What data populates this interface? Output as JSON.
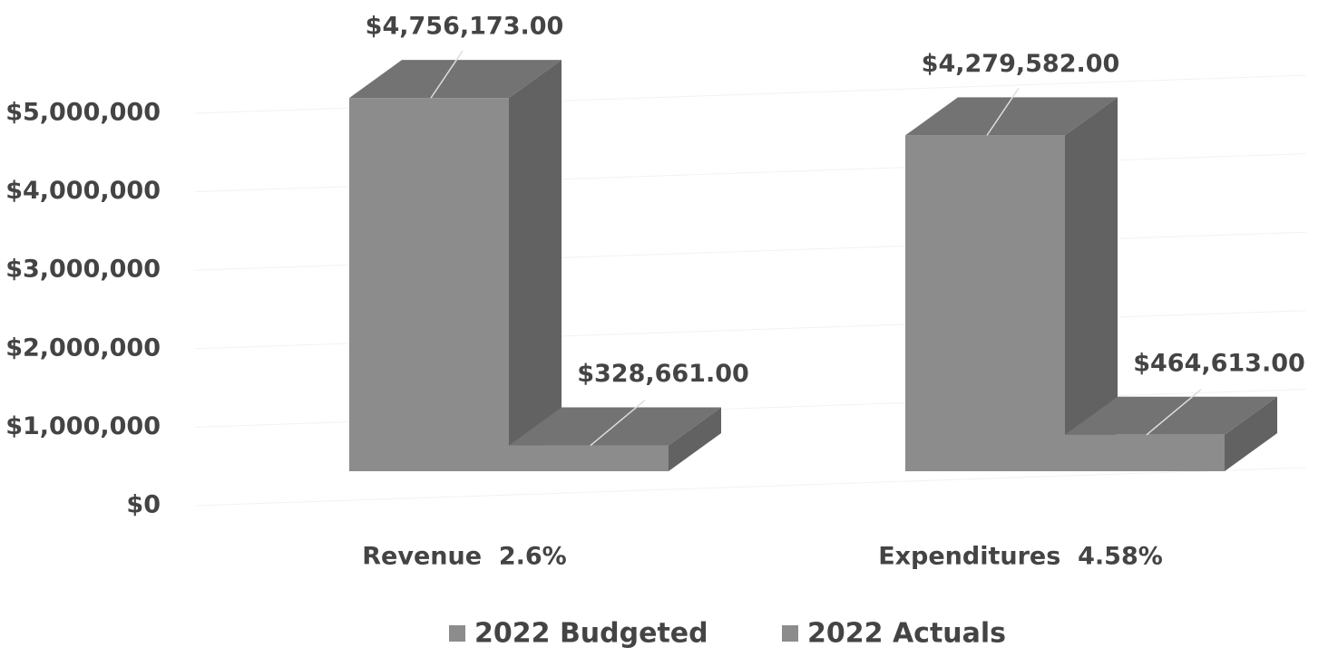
{
  "chart_data": {
    "type": "bar3d",
    "categories": [
      "Revenue  2.6%",
      "Expenditures  4.58%"
    ],
    "series": [
      {
        "name": "2022 Budgeted",
        "color": "#8c8c8c",
        "values": [
          4756173,
          4279582
        ],
        "value_labels": [
          "$4,756,173.00",
          "$4,279,582.00"
        ]
      },
      {
        "name": "2022 Actuals",
        "color": "#8c8c8c",
        "values": [
          328661,
          464613
        ],
        "value_labels": [
          "$328,661.00",
          "$464,613.00"
        ]
      }
    ],
    "ylim": [
      0,
      5000000
    ],
    "yticks": [
      {
        "value": 0,
        "label": "$0"
      },
      {
        "value": 1000000,
        "label": "$1,000,000"
      },
      {
        "value": 2000000,
        "label": "$2,000,000"
      },
      {
        "value": 3000000,
        "label": "$3,000,000"
      },
      {
        "value": 4000000,
        "label": "$4,000,000"
      },
      {
        "value": 5000000,
        "label": "$5,000,000"
      }
    ],
    "grid": true,
    "legend": "bottom"
  }
}
